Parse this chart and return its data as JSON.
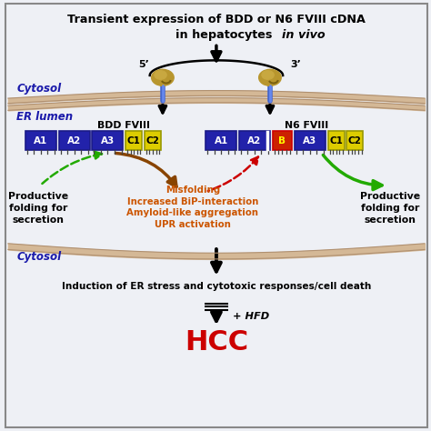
{
  "title_line1": "Transient expression of BDD or N6 FVIII cDNA",
  "title_line2": "in hepatocytes ",
  "title_italic": "in vivo",
  "bg_color": "#eef0f5",
  "border_color": "#aaaaaa",
  "cytosol_color": "#1a1aaa",
  "er_membrane_color": "#d4b896",
  "box_blue": "#2222aa",
  "box_yellow": "#ddcc00",
  "box_red": "#cc2200",
  "text_orange": "#cc5500",
  "text_green": "#228800",
  "text_black": "#000000",
  "text_red": "#cc0000",
  "bdd_label": "BDD FVIII",
  "n6_label": "N6 FVIII",
  "productive_left": "Productive\nfolding for\nsecretion",
  "productive_right": "Productive\nfolding for\nsecretion",
  "misfolding_text": "Misfolding\nIncreased BiP-interaction\nAmyloid-like aggregation\nUPR activation",
  "er_stress_text": "Induction of ER stress and cytotoxic responses/cell death",
  "hfd_text": "+ HFD",
  "hcc_text": "HCC",
  "prime5": "5’",
  "prime3": "3’",
  "cytosol_italic": true,
  "ribosome_color1": "#b8962e",
  "ribosome_color2": "#c8a840",
  "needle_color": "#4466cc"
}
